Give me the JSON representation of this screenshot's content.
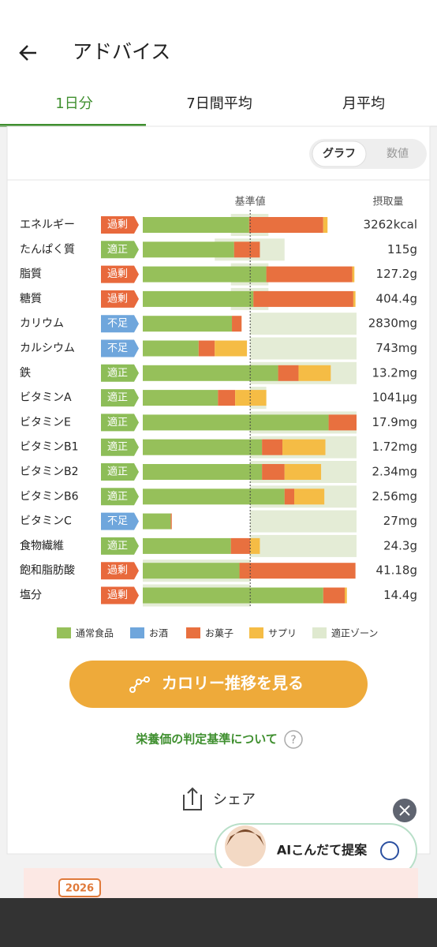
{
  "header": {
    "title": "アドバイス"
  },
  "tabs": [
    "1日分",
    "7日間平均",
    "月平均"
  ],
  "toggle": [
    "グラフ",
    "数値"
  ],
  "chart_data": {
    "type": "bar",
    "reference": {
      "label": "基準値",
      "value": 100
    },
    "amount_header": "摂取量",
    "xlim": [
      0,
      199
    ],
    "categories": [
      "エネルギー",
      "たんぱく質",
      "脂質",
      "糖質",
      "カリウム",
      "カルシウム",
      "鉄",
      "ビタミンA",
      "ビタミンE",
      "ビタミンB1",
      "ビタミンB2",
      "ビタミンB6",
      "ビタミンC",
      "食物繊維",
      "飽和脂肪酸",
      "塩分"
    ],
    "status": [
      "過剰",
      "適正",
      "過剰",
      "過剰",
      "不足",
      "不足",
      "適正",
      "適正",
      "適正",
      "適正",
      "適正",
      "適正",
      "不足",
      "適正",
      "過剰",
      "過剰"
    ],
    "status_colors": {
      "過剰": "#e8693c",
      "適正": "#8dbd58",
      "不足": "#6fa6dc"
    },
    "amounts": [
      "3262kcal",
      "115g",
      "127.2g",
      "404.4g",
      "2830mg",
      "743mg",
      "13.2mg",
      "1041μg",
      "17.9mg",
      "1.72mg",
      "2.34mg",
      "2.56mg",
      "27mg",
      "24.3g",
      "41.18g",
      "14.4g"
    ],
    "series": [
      {
        "name": "通常食品",
        "color": "#96c05a",
        "values": [
          99,
          85,
          115,
          103,
          83,
          52,
          126,
          70,
          173,
          111,
          111,
          132,
          26,
          82,
          90,
          168
        ]
      },
      {
        "name": "お酒",
        "color": "#6fa6dc",
        "values": [
          0,
          0,
          0,
          0,
          0,
          0,
          0,
          0,
          0,
          0,
          0,
          0,
          0,
          0,
          0,
          0
        ]
      },
      {
        "name": "お菓子",
        "color": "#e8703f",
        "values": [
          69,
          24,
          80,
          93,
          9,
          15,
          19,
          16,
          26,
          19,
          21,
          9,
          1,
          18,
          108,
          20
        ]
      },
      {
        "name": "サプリ",
        "color": "#f5bc45",
        "values": [
          4,
          0,
          2,
          2,
          0,
          30,
          30,
          29,
          0,
          40,
          34,
          28,
          0,
          9,
          0,
          2
        ]
      }
    ],
    "zone": {
      "name": "適正ゾーン",
      "color": "#dfe9cf",
      "low": [
        82,
        67,
        82,
        82,
        100,
        100,
        100,
        100,
        100,
        100,
        100,
        100,
        100,
        100,
        0,
        0
      ],
      "high": [
        117,
        132,
        117,
        117,
        199,
        199,
        199,
        115,
        199,
        199,
        199,
        199,
        199,
        199,
        100,
        100
      ]
    }
  },
  "button": "カロリー推移を見る",
  "link": "栄養価の判定基準について",
  "help_icon": "?",
  "share": "シェア",
  "ai_bubble": "AIこんだて提案",
  "banner_year": "2026"
}
